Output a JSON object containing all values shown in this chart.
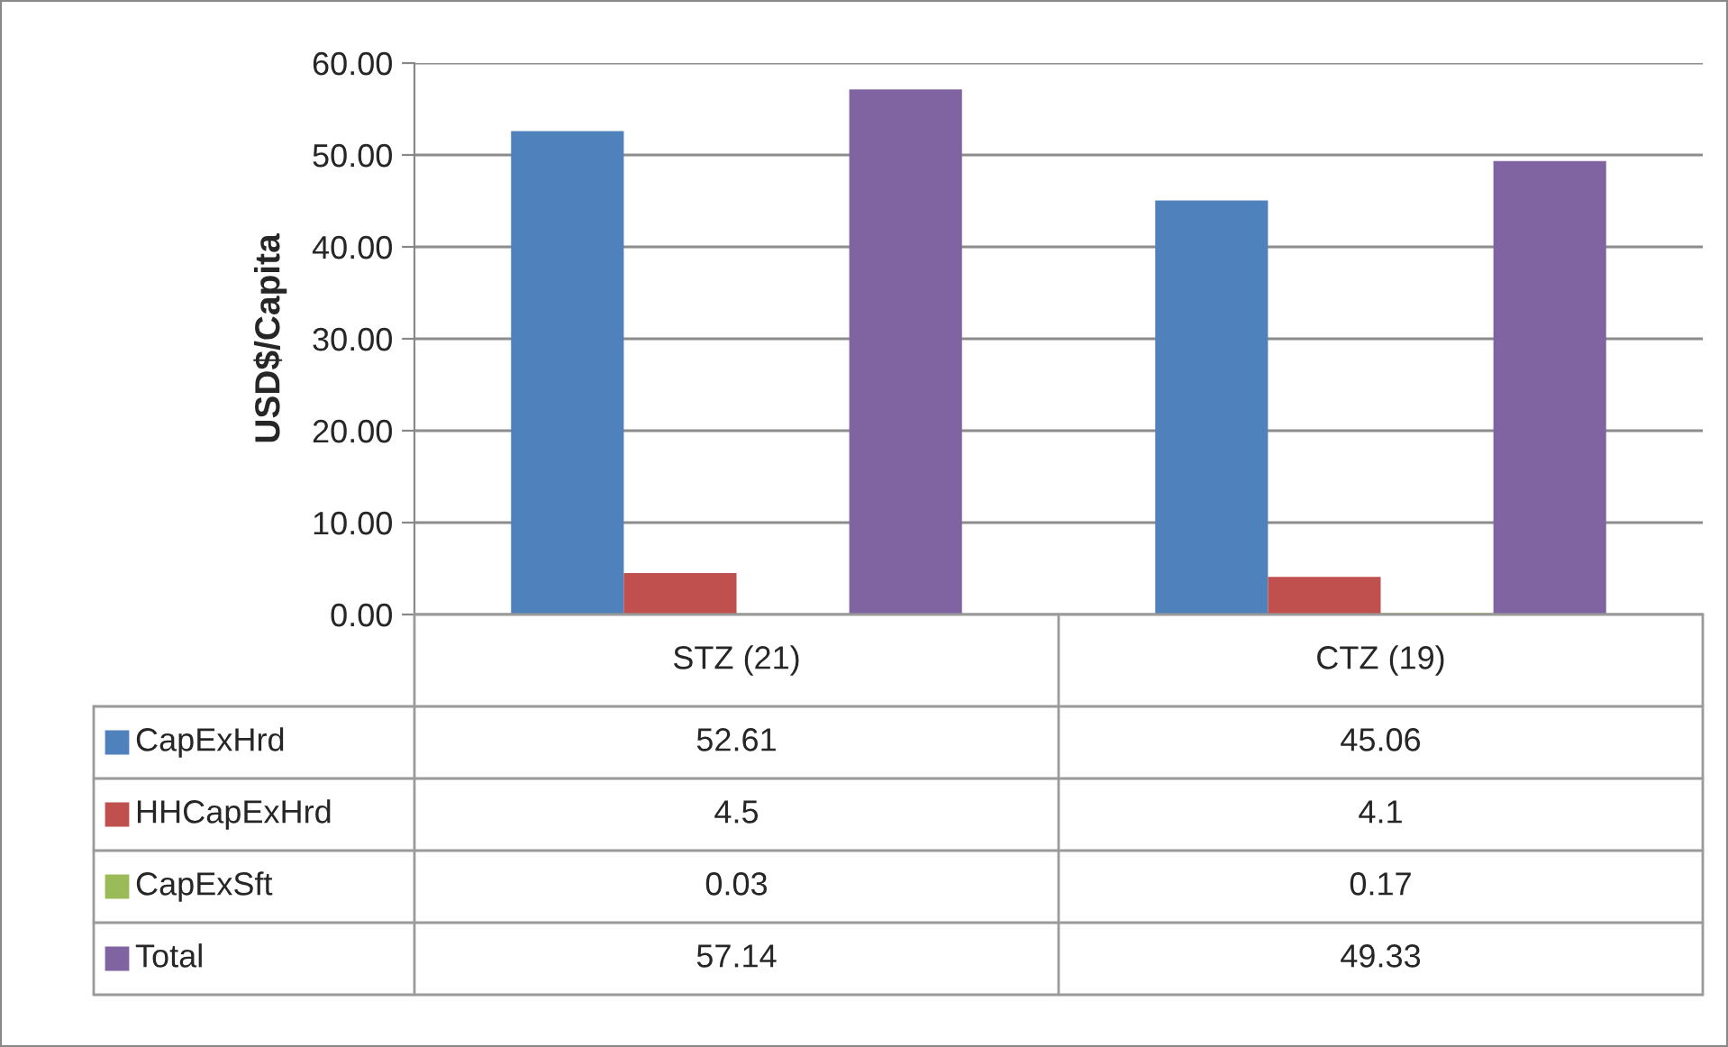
{
  "chart_data": {
    "type": "bar",
    "ylabel": "USD$/Capita",
    "categories": [
      "STZ (21)",
      "CTZ (19)"
    ],
    "series": [
      {
        "name": "CapExHrd",
        "color": "#4f81bd",
        "values": [
          52.61,
          45.06
        ]
      },
      {
        "name": "HHCapExHrd",
        "color": "#c0504d",
        "values": [
          4.5,
          4.1
        ]
      },
      {
        "name": "CapExSft",
        "color": "#9bbb59",
        "values": [
          0.03,
          0.17
        ]
      },
      {
        "name": "Total",
        "color": "#8064a2",
        "values": [
          57.14,
          49.33
        ]
      }
    ],
    "ylim": [
      0,
      60
    ],
    "yticks": [
      {
        "value": 0,
        "label": "0.00"
      },
      {
        "value": 10,
        "label": "10.00"
      },
      {
        "value": 20,
        "label": "20.00"
      },
      {
        "value": 30,
        "label": "30.00"
      },
      {
        "value": 40,
        "label": "40.00"
      },
      {
        "value": 50,
        "label": "50.00"
      },
      {
        "value": 60,
        "label": "60.00"
      }
    ],
    "grid": "y",
    "data_labels": true,
    "legend": "bottom left"
  }
}
